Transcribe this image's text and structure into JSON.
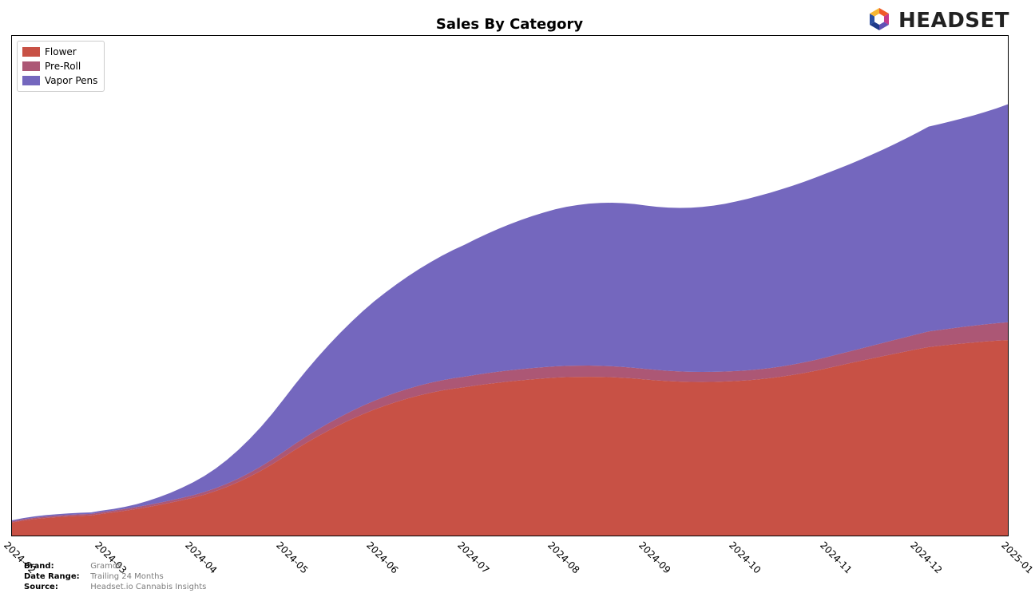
{
  "title": "Sales By Category",
  "logo_text": "HEADSET",
  "legend": {
    "border_color": "#cccccc",
    "background": "#ffffff",
    "items": [
      {
        "label": "Flower",
        "color": "#c0392b"
      },
      {
        "label": "Pre-Roll",
        "color": "#a04062"
      },
      {
        "label": "Vapor Pens",
        "color": "#6152b5"
      }
    ]
  },
  "chart": {
    "type": "stacked-area",
    "background_color": "#ffffff",
    "border_color": "#000000",
    "area_opacity": 0.88,
    "x_labels": [
      "2024-02",
      "2024-03",
      "2024-04",
      "2024-05",
      "2024-06",
      "2024-07",
      "2024-08",
      "2024-09",
      "2024-10",
      "2024-11",
      "2024-12",
      "2025-01"
    ],
    "y_range": [
      0,
      100
    ],
    "series": [
      {
        "name": "Flower",
        "color": "#c0392b",
        "values": [
          0,
          6,
          5,
          15,
          28,
          29,
          33,
          31,
          30,
          33,
          38,
          40
        ]
      },
      {
        "name": "Pre-Roll",
        "color": "#a04062",
        "values": [
          0,
          0.5,
          0.3,
          1,
          2,
          2,
          2.5,
          2,
          2,
          2,
          3,
          4
        ]
      },
      {
        "name": "Vapor Pens",
        "color": "#6152b5",
        "values": [
          0,
          0.5,
          0.2,
          10,
          22,
          25,
          34,
          32,
          33,
          38,
          38,
          48
        ]
      }
    ],
    "tick_label_fontsize": 12,
    "tick_label_rotation_deg": 45,
    "title_fontsize": 18,
    "title_fontweight": "bold"
  },
  "footer": {
    "rows": [
      {
        "label": "Brand:",
        "value": "Gramos"
      },
      {
        "label": "Date Range:",
        "value": "Trailing 24 Months"
      },
      {
        "label": "Source:",
        "value": "Headset.io Cannabis Insights"
      }
    ],
    "label_color": "#000000",
    "value_color": "#7d7d7d",
    "fontsize": 10
  },
  "logo": {
    "colors": [
      "#f05a28",
      "#c53a8b",
      "#6152b5",
      "#1e3a8a",
      "#f7b733"
    ]
  }
}
